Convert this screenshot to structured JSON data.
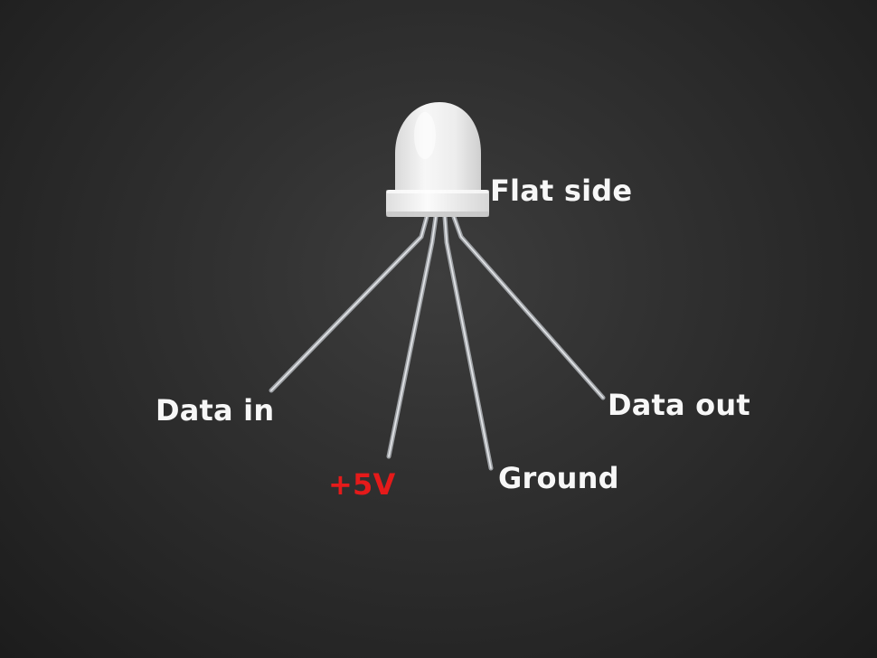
{
  "labels": {
    "flat_side": "Flat side",
    "data_in": "Data in",
    "plus_5v": "+5V",
    "ground": "Ground",
    "data_out": "Data out"
  },
  "colors": {
    "label_text": "#f7f7f7",
    "power_label": "#e51a1a",
    "background": "#2e2e2e",
    "led_body": "#eeeeee",
    "lead_metal": "#b9bcbf"
  },
  "icons": {
    "component": "rgb-led-icon"
  }
}
